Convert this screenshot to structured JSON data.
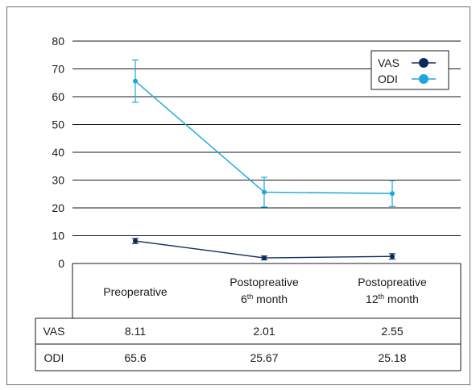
{
  "chart_data": {
    "type": "line",
    "categories": [
      {
        "line1": "Preoperative",
        "line2": "",
        "sup": ""
      },
      {
        "line1": "Postopreative",
        "line2": "6",
        "sup": "th",
        "line2_rest": " month"
      },
      {
        "line1": "Postopreative",
        "line2": "12",
        "sup": "th",
        "line2_rest": " month"
      }
    ],
    "ylim": [
      0,
      80
    ],
    "yticks": [
      0,
      10,
      20,
      30,
      40,
      50,
      60,
      70,
      80
    ],
    "grid": true,
    "legend_position": "top-right",
    "series": [
      {
        "name": "VAS",
        "color": "#0d2a5c",
        "values": [
          8.11,
          2.01,
          2.55
        ],
        "error_low": [
          7.2,
          1.3,
          1.6
        ],
        "error_high": [
          9.0,
          2.7,
          3.5
        ]
      },
      {
        "name": "ODI",
        "color": "#1aa7e0",
        "values": [
          65.6,
          25.67,
          25.18
        ],
        "error_low": [
          58.0,
          20.3,
          20.5
        ],
        "error_high": [
          73.2,
          31.0,
          29.8
        ]
      }
    ],
    "table": {
      "rows": [
        {
          "label": "VAS",
          "values": [
            "8.11",
            "2.01",
            "2.55"
          ]
        },
        {
          "label": "ODI",
          "values": [
            "65.6",
            "25.67",
            "25.18"
          ]
        }
      ]
    }
  }
}
